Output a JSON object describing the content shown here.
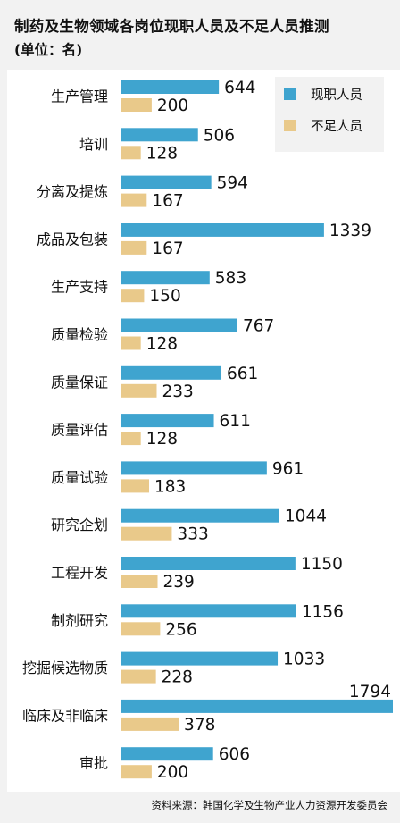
{
  "header": {
    "title": "制药及生物领域各岗位现职人员及不足人员推测",
    "unit": "(单位：名)"
  },
  "colors": {
    "current": "#3fa4cf",
    "shortage": "#e9c98a"
  },
  "legend": {
    "current_label": "现职人员",
    "shortage_label": "不足人员"
  },
  "source": "资料来源：韩国化学及生物产业人力资源开发委员会",
  "chart_data": {
    "type": "bar",
    "orientation": "horizontal",
    "categories": [
      "生产管理",
      "培训",
      "分离及提炼",
      "成品及包装",
      "生产支持",
      "质量检验",
      "质量保证",
      "质量评估",
      "质量试验",
      "研究企划",
      "工程开发",
      "制剂研究",
      "挖掘候选物质",
      "临床及非临床",
      "审批"
    ],
    "series": [
      {
        "name": "现职人员",
        "values": [
          644,
          506,
          594,
          1339,
          583,
          767,
          661,
          611,
          961,
          1044,
          1150,
          1156,
          1033,
          1794,
          606
        ]
      },
      {
        "name": "不足人员",
        "values": [
          200,
          128,
          167,
          167,
          150,
          128,
          233,
          128,
          183,
          333,
          239,
          256,
          228,
          378,
          200
        ]
      }
    ],
    "xlim": [
      0,
      1794
    ],
    "legend_position": "top-right"
  }
}
